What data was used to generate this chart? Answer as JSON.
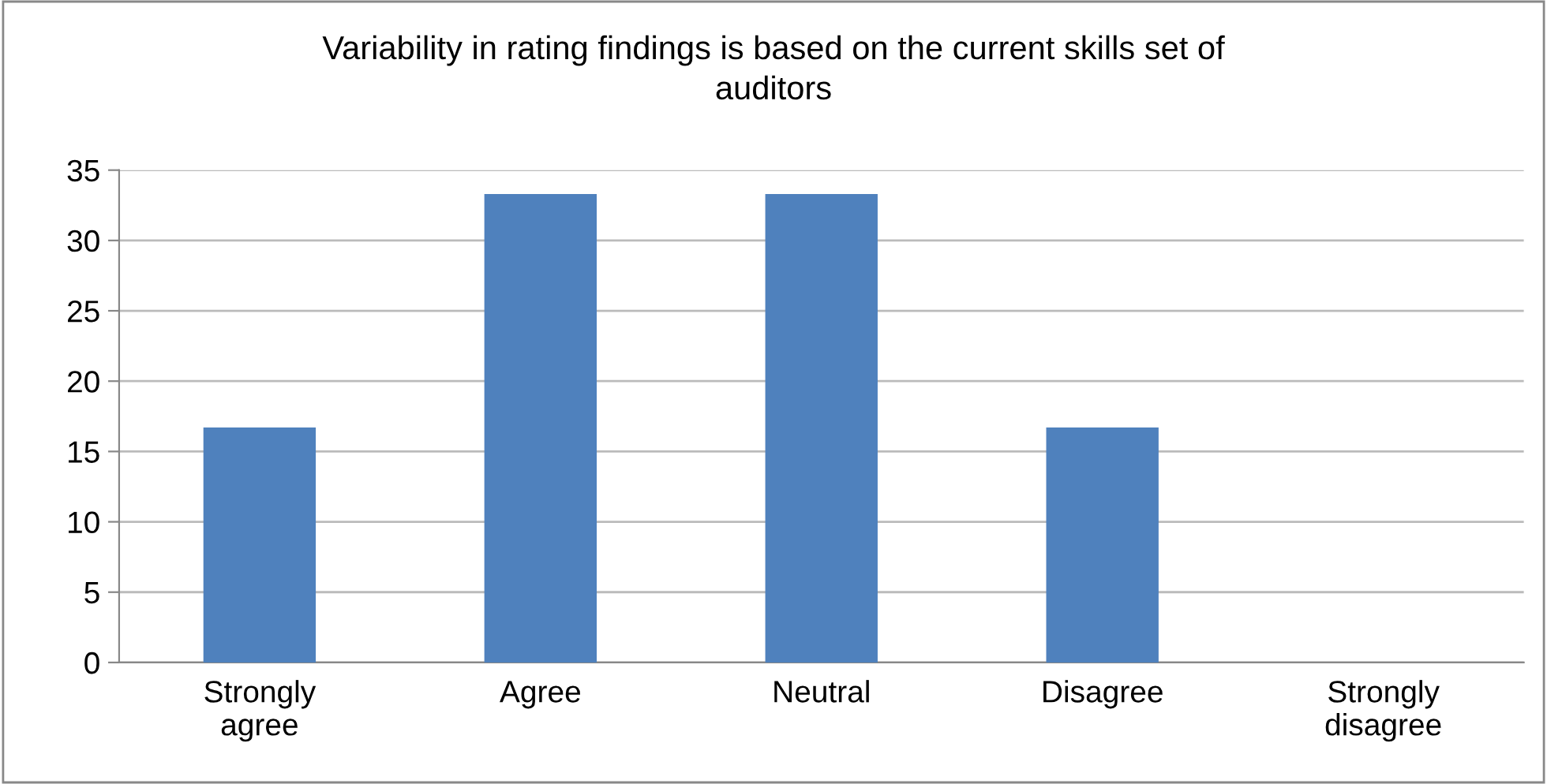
{
  "chart_data": {
    "type": "bar",
    "title": "Variability in rating findings is based on the current skills set of\nauditors",
    "categories": [
      "Strongly\nagree",
      "Agree",
      "Neutral",
      "Disagree",
      "Strongly\ndisagree"
    ],
    "values": [
      16.7,
      33.3,
      33.3,
      16.7,
      0
    ],
    "color": "#4f81bd",
    "ylim": [
      0,
      35
    ],
    "yticks": [
      0,
      5,
      10,
      15,
      20,
      25,
      30,
      35
    ],
    "grid": "y"
  }
}
